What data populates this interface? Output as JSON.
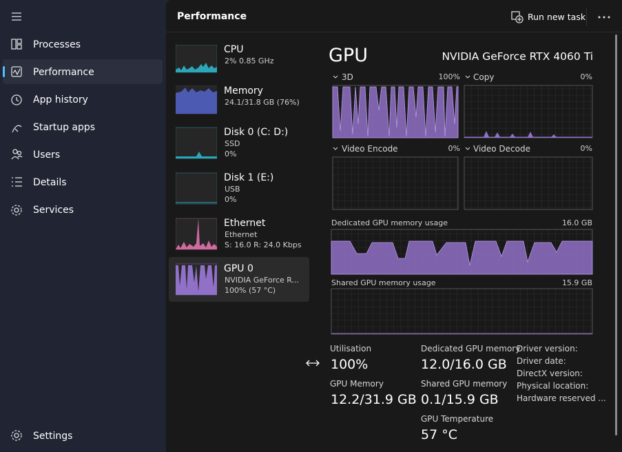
{
  "sidebar": {
    "items": [
      "Processes",
      "Performance",
      "App history",
      "Startup apps",
      "Users",
      "Details",
      "Services"
    ],
    "settings": "Settings"
  },
  "header": {
    "title": "Performance",
    "run_new_task": "Run new task"
  },
  "devices": [
    {
      "name": "CPU",
      "lines": [
        "2% 0.85 GHz"
      ]
    },
    {
      "name": "Memory",
      "lines": [
        "24.1/31.8 GB (76%)"
      ]
    },
    {
      "name": "Disk 0 (C: D:)",
      "lines": [
        "SSD",
        "0%"
      ]
    },
    {
      "name": "Disk 1 (E:)",
      "lines": [
        "USB",
        "0%"
      ]
    },
    {
      "name": "Ethernet",
      "lines": [
        "Ethernet",
        "S: 16.0 R: 24.0 Kbps"
      ]
    },
    {
      "name": "GPU 0",
      "lines": [
        "NVIDIA GeForce R...",
        "100% (57 °C)"
      ]
    }
  ],
  "detail": {
    "title": "GPU",
    "adapter": "NVIDIA GeForce RTX 4060 Ti",
    "engines": [
      {
        "label": "3D",
        "max": "100%"
      },
      {
        "label": "Copy",
        "max": "0%"
      },
      {
        "label": "Video Encode",
        "max": "0%"
      },
      {
        "label": "Video Decode",
        "max": "0%"
      }
    ],
    "memory_graphs": [
      {
        "label": "Dedicated GPU memory usage",
        "max": "16.0 GB"
      },
      {
        "label": "Shared GPU memory usage",
        "max": "15.9 GB"
      }
    ],
    "stats": [
      {
        "label": "Utilisation",
        "value": "100%"
      },
      {
        "label": "GPU Memory",
        "value": "12.2/31.9 GB"
      },
      {
        "label": "Dedicated GPU memory",
        "value": "12.0/16.0 GB"
      },
      {
        "label": "Shared GPU memory",
        "value": "0.1/15.9 GB"
      },
      {
        "label": "GPU Temperature",
        "value": "57 °C"
      }
    ],
    "driver_info": [
      "Driver version:",
      "Driver date:",
      "DirectX version:",
      "Physical location:",
      "Hardware reserved ..."
    ]
  }
}
